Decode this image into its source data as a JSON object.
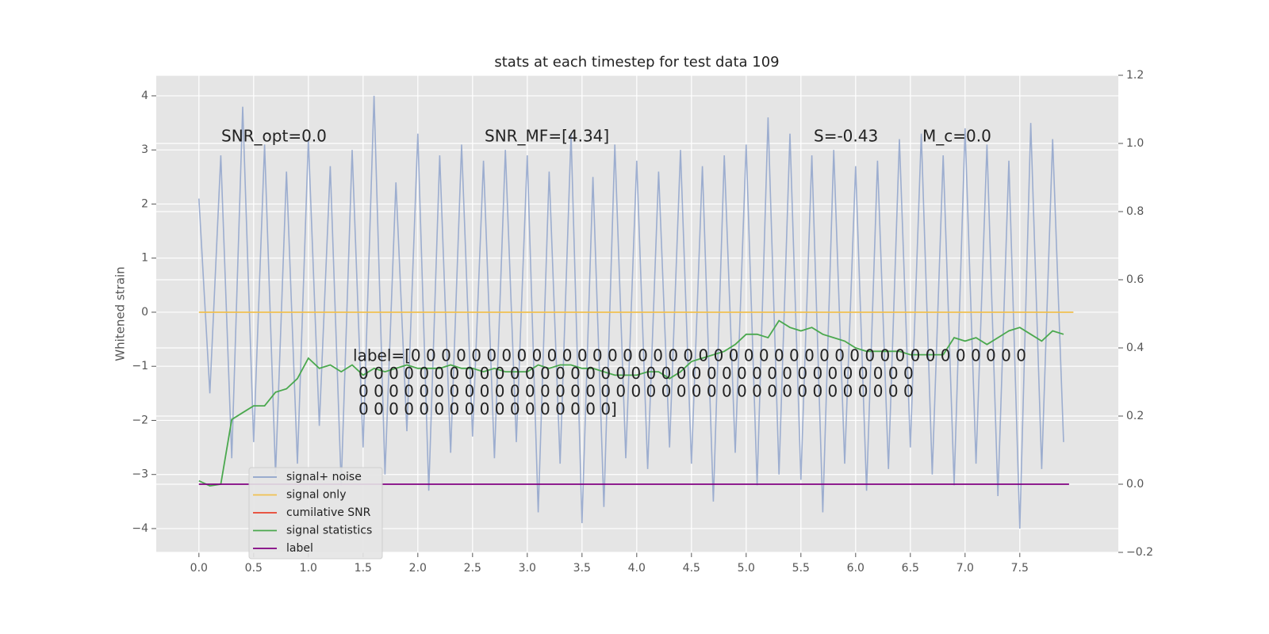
{
  "chart_data": {
    "type": "line",
    "title": "stats at each timestep for test data 109",
    "ylabel": "Whitened strain",
    "x": [
      0.0,
      0.1,
      0.2,
      0.3,
      0.4,
      0.5,
      0.6,
      0.7,
      0.8,
      0.9,
      1.0,
      1.1,
      1.2,
      1.3,
      1.4,
      1.5,
      1.6,
      1.7,
      1.8,
      1.9,
      2.0,
      2.1,
      2.2,
      2.3,
      2.4,
      2.5,
      2.6,
      2.7,
      2.8,
      2.9,
      3.0,
      3.1,
      3.2,
      3.3,
      3.4,
      3.5,
      3.6,
      3.7,
      3.8,
      3.9,
      4.0,
      4.1,
      4.2,
      4.3,
      4.4,
      4.5,
      4.6,
      4.7,
      4.8,
      4.9,
      5.0,
      5.1,
      5.2,
      5.3,
      5.4,
      5.5,
      5.6,
      5.7,
      5.8,
      5.9,
      6.0,
      6.1,
      6.2,
      6.3,
      6.4,
      6.5,
      6.6,
      6.7,
      6.8,
      6.9,
      7.0,
      7.1,
      7.2,
      7.3,
      7.4,
      7.5,
      7.6,
      7.7,
      7.8,
      7.9
    ],
    "series": [
      {
        "name": "signal+ noise",
        "color": "#8fa3cb",
        "values": [
          2.1,
          -1.5,
          2.9,
          -2.7,
          3.8,
          -2.4,
          3.1,
          -3.0,
          2.6,
          -2.8,
          3.2,
          -2.1,
          2.7,
          -3.2,
          3.0,
          -2.5,
          4.0,
          -3.0,
          2.4,
          -2.2,
          3.3,
          -3.3,
          2.9,
          -2.6,
          3.1,
          -2.3,
          2.8,
          -2.7,
          3.0,
          -2.4,
          2.9,
          -3.7,
          2.6,
          -2.8,
          3.3,
          -3.9,
          2.5,
          -3.6,
          3.1,
          -2.7,
          2.8,
          -2.9,
          2.6,
          -2.5,
          3.0,
          -2.8,
          2.7,
          -3.5,
          2.9,
          -2.6,
          3.1,
          -3.2,
          3.6,
          -3.0,
          3.3,
          -3.1,
          2.9,
          -3.7,
          3.0,
          -2.8,
          2.7,
          -3.3,
          2.8,
          -2.9,
          3.2,
          -2.5,
          3.3,
          -3.0,
          2.9,
          -3.2,
          3.4,
          -2.8,
          3.1,
          -3.4,
          2.8,
          -4.0,
          3.5,
          -2.9,
          3.2,
          -2.4
        ]
      },
      {
        "name": "signal only",
        "color": "#f0c050",
        "x": [
          0,
          7.99
        ],
        "values": [
          0,
          0
        ]
      },
      {
        "name": "cumilative SNR",
        "color": "#e8412c",
        "x": [],
        "values": []
      },
      {
        "name": "signal statistics",
        "color": "#4aa84e",
        "axis": "y2",
        "values": [
          0.01,
          -0.005,
          0.0,
          0.19,
          0.21,
          0.23,
          0.23,
          0.27,
          0.28,
          0.31,
          0.37,
          0.34,
          0.35,
          0.33,
          0.35,
          0.32,
          0.34,
          0.33,
          0.34,
          0.35,
          0.34,
          0.34,
          0.34,
          0.35,
          0.34,
          0.34,
          0.33,
          0.34,
          0.33,
          0.33,
          0.33,
          0.35,
          0.34,
          0.35,
          0.35,
          0.34,
          0.34,
          0.33,
          0.32,
          0.32,
          0.32,
          0.33,
          0.33,
          0.31,
          0.33,
          0.36,
          0.37,
          0.38,
          0.39,
          0.41,
          0.44,
          0.44,
          0.43,
          0.48,
          0.46,
          0.45,
          0.46,
          0.44,
          0.43,
          0.42,
          0.4,
          0.39,
          0.39,
          0.39,
          0.39,
          0.38,
          0.38,
          0.38,
          0.38,
          0.43,
          0.42,
          0.43,
          0.41,
          0.43,
          0.45,
          0.46,
          0.44,
          0.42,
          0.45,
          0.44
        ]
      },
      {
        "name": "label",
        "color": "#800080",
        "axis": "y2",
        "x": [
          0,
          7.95
        ],
        "values": [
          0,
          0
        ]
      }
    ],
    "xlim": [
      -0.39,
      8.4
    ],
    "xticks": [
      {
        "value": 0,
        "label": "0.0"
      },
      0.5,
      {
        "value": 1,
        "label": "1.0"
      },
      1.5,
      {
        "value": 2,
        "label": "2.0"
      },
      2.5,
      {
        "value": 3,
        "label": "3.0"
      },
      3.5,
      {
        "value": 4,
        "label": "4.0"
      },
      4.5,
      {
        "value": 5,
        "label": "5.0"
      },
      5.5,
      {
        "value": 6,
        "label": "6.0"
      },
      6.5,
      {
        "value": 7,
        "label": "7.0"
      },
      7.5
    ],
    "ylim": [
      -4.44,
      4.38
    ],
    "yticks": [
      {
        "value": -4,
        "label": "−4"
      },
      {
        "value": -3,
        "label": "−3"
      },
      {
        "value": -2,
        "label": "−2"
      },
      {
        "value": -1,
        "label": "−1"
      },
      0,
      1,
      2,
      3,
      4
    ],
    "y2lim": [
      -0.2,
      1.2
    ],
    "y2ticks": [
      {
        "value": -0.2,
        "label": "−0.2"
      },
      {
        "value": 0,
        "label": "0.0"
      },
      0.2,
      0.4,
      0.6,
      0.8,
      {
        "value": 1,
        "label": "1.0"
      },
      1.2
    ],
    "grid": true,
    "legend": "lower left",
    "annotations": [
      "SNR_opt=0.0",
      "SNR_MF=[4.34]",
      "S=-0.43",
      "M_c=0.0"
    ],
    "label_text": [
      "label=[0 0 0 0 0 0 0 0 0 0 0 0 0 0 0 0 0 0 0 0 0 0 0 0 0 0 0 0 0 0 0 0 0 0 0 0 0 0 0 0 0",
      "0 0 0 0 0 0 0 0 0 0 0 0 0 0 0 0 0 0 0 0 0 0 0 0 0 0 0 0 0 0 0 0 0 0 0 0 0",
      "0 0 0 0 0 0 0 0 0 0 0 0 0 0 0 0 0 0 0 0 0 0 0 0 0 0 0 0 0 0 0 0 0 0 0 0 0",
      "0 0 0 0 0 0 0 0 0 0 0 0 0 0 0 0 0]"
    ]
  }
}
